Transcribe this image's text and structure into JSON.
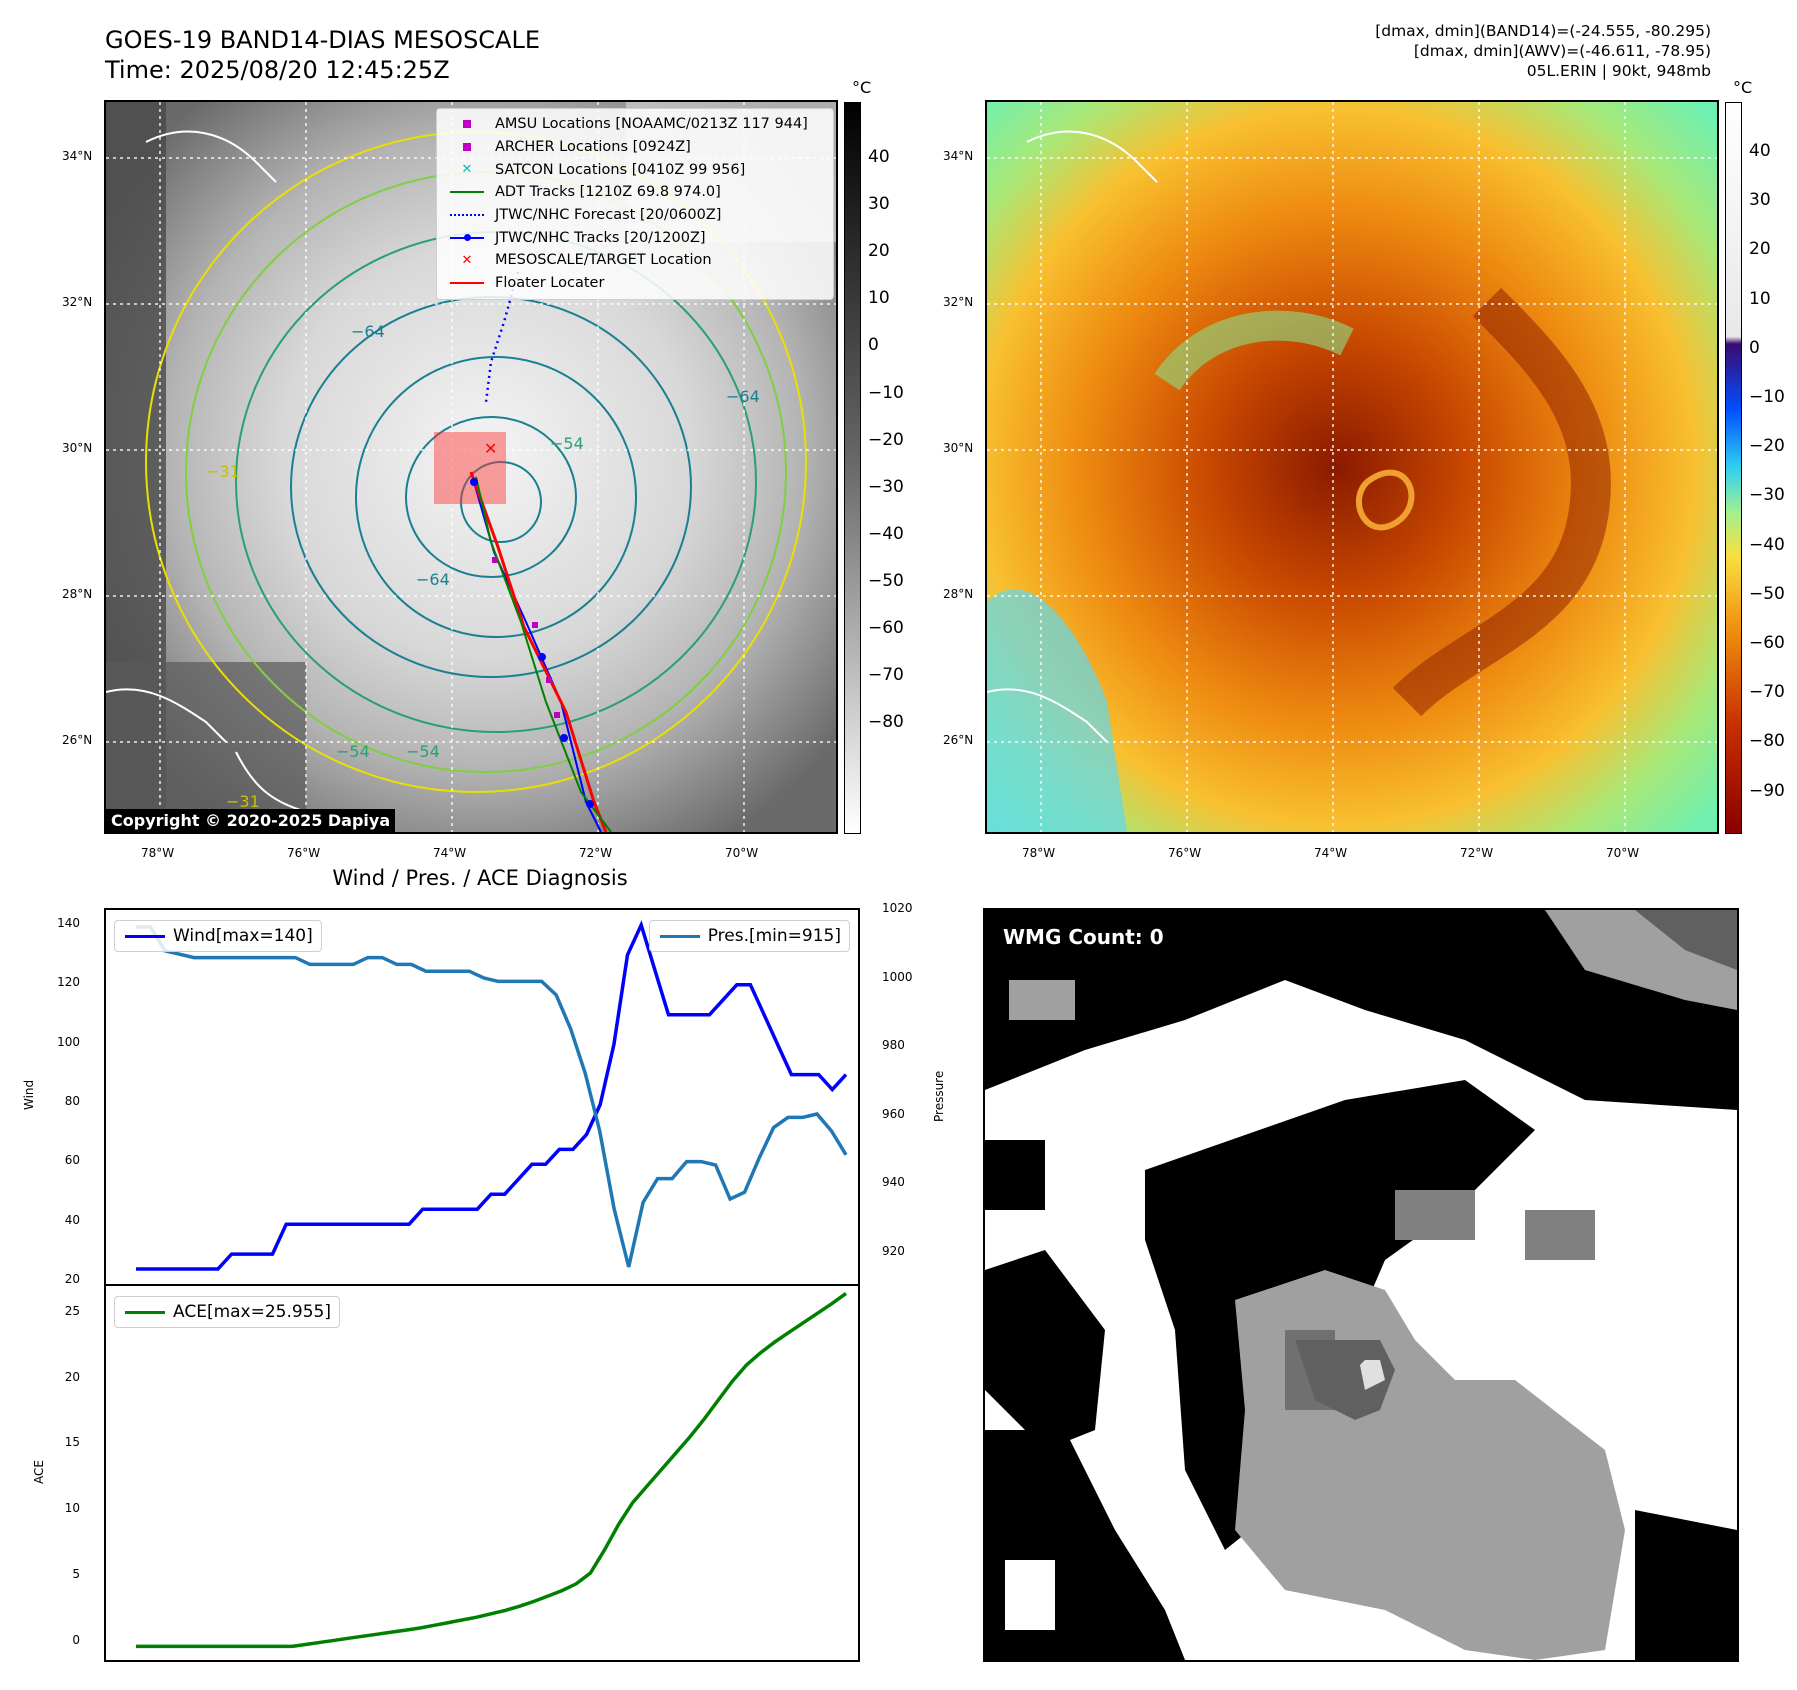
{
  "header": {
    "title_line1": "GOES-19 BAND14-DIAS MESOSCALE",
    "title_line2": "Time: 2025/08/20 12:45:25Z",
    "info_line1": "[dmax, dmin](BAND14)=(-24.555, -80.295)",
    "info_line2": "[dmax, dmin](AWV)=(-46.611, -78.95)",
    "info_line3": "05L.ERIN | 90kt, 948mb"
  },
  "map_axes": {
    "lat_labels": [
      "34°N",
      "32°N",
      "30°N",
      "28°N",
      "26°N"
    ],
    "lon_labels": [
      "78°W",
      "76°W",
      "74°W",
      "72°W",
      "70°W"
    ],
    "lat_values": [
      34,
      32,
      30,
      28,
      26
    ],
    "lon_values": [
      -78,
      -76,
      -74,
      -72,
      -70
    ]
  },
  "map1": {
    "colorbar_unit": "°C",
    "colorbar_ticks": [
      "40",
      "30",
      "20",
      "10",
      "0",
      "−10",
      "−20",
      "−30",
      "−40",
      "−50",
      "−60",
      "−70",
      "−80"
    ],
    "contour_labels": [
      "−64",
      "−31",
      "−64",
      "−54",
      "−64",
      "−54",
      "−31",
      "−54"
    ],
    "copyright": "Copyright © 2020-2025 Dapiya",
    "legend": [
      {
        "label": "AMSU Locations [NOAAMC/0213Z 117 944]",
        "icon": "square-marker",
        "color": "#c000c0"
      },
      {
        "label": "ARCHER Locations [0924Z]",
        "icon": "square-marker",
        "color": "#c000c0"
      },
      {
        "label": "SATCON Locations [0410Z 99 956]",
        "icon": "x-marker",
        "color": "#00c0c0"
      },
      {
        "label": "ADT Tracks [1210Z 69.8 974.0]",
        "icon": "solid-line",
        "color": "#008000"
      },
      {
        "label": "JTWC/NHC Forecast [20/0600Z]",
        "icon": "dotted-line",
        "color": "#0000ff"
      },
      {
        "label": "JTWC/NHC Tracks [20/1200Z]",
        "icon": "line-dot",
        "color": "#0000ff"
      },
      {
        "label": "MESOSCALE/TARGET Location",
        "icon": "x-marker",
        "color": "#ff0000"
      },
      {
        "label": "Floater Locater",
        "icon": "solid-line",
        "color": "#ff0000"
      }
    ]
  },
  "map2": {
    "colorbar_unit": "°C",
    "colorbar_ticks": [
      "40",
      "30",
      "20",
      "10",
      "0",
      "−10",
      "−20",
      "−30",
      "−40",
      "−50",
      "−60",
      "−70",
      "−80",
      "−90"
    ]
  },
  "diag": {
    "title": "Wind / Pres. / ACE Diagnosis",
    "wind_ylabel": "Wind",
    "pres_ylabel": "Pressure",
    "ace_ylabel": "ACE",
    "wind_legend": "Wind[max=140]",
    "pres_legend": "Pres.[min=915]",
    "ace_legend": "ACE[max=25.955]",
    "wind_ticks": [
      "140",
      "120",
      "100",
      "80",
      "60",
      "40",
      "20"
    ],
    "pres_ticks": [
      "1020",
      "1000",
      "980",
      "960",
      "940",
      "920"
    ],
    "ace_ticks": [
      "25",
      "20",
      "15",
      "10",
      "5",
      "0"
    ],
    "colors": {
      "wind": "#0000ff",
      "pres": "#1f77b4",
      "ace": "#008000"
    }
  },
  "wmg": {
    "label": "WMG Count: 0"
  },
  "chart_data": [
    {
      "type": "line",
      "title": "Wind / Pres. / ACE Diagnosis",
      "ylabel": "Wind",
      "ylim": [
        20,
        145
      ],
      "series": [
        {
          "name": "Wind[max=140]",
          "values": [
            25,
            25,
            25,
            25,
            25,
            25,
            25,
            30,
            30,
            30,
            30,
            40,
            40,
            40,
            40,
            40,
            40,
            40,
            40,
            40,
            40,
            45,
            45,
            45,
            45,
            45,
            50,
            50,
            55,
            60,
            60,
            65,
            65,
            70,
            80,
            100,
            130,
            140,
            125,
            110,
            110,
            110,
            110,
            115,
            120,
            120,
            110,
            100,
            90,
            90,
            90,
            85,
            90
          ]
        }
      ]
    },
    {
      "type": "line",
      "ylabel": "Pressure",
      "ylim": [
        910,
        1020
      ],
      "series": [
        {
          "name": "Pres.[min=915]",
          "values": [
            1015,
            1015,
            1008,
            1007,
            1006,
            1006,
            1006,
            1006,
            1006,
            1006,
            1006,
            1006,
            1004,
            1004,
            1004,
            1004,
            1006,
            1006,
            1004,
            1004,
            1002,
            1002,
            1002,
            1002,
            1000,
            999,
            999,
            999,
            999,
            995,
            985,
            972,
            955,
            932,
            915,
            934,
            941,
            941,
            946,
            946,
            945,
            935,
            937,
            947,
            956,
            959,
            959,
            960,
            955,
            948
          ]
        }
      ]
    },
    {
      "type": "line",
      "ylabel": "ACE",
      "ylim": [
        -1,
        26.5
      ],
      "series": [
        {
          "name": "ACE[max=25.955]",
          "values": [
            0,
            0,
            0,
            0,
            0,
            0,
            0,
            0,
            0,
            0,
            0,
            0,
            0.15,
            0.3,
            0.45,
            0.6,
            0.75,
            0.9,
            1.05,
            1.2,
            1.35,
            1.55,
            1.75,
            1.95,
            2.15,
            2.4,
            2.65,
            2.95,
            3.3,
            3.7,
            4.1,
            4.6,
            5.4,
            7.1,
            9.0,
            10.6,
            11.8,
            13.0,
            14.2,
            15.4,
            16.7,
            18.1,
            19.5,
            20.7,
            21.6,
            22.4,
            23.1,
            23.8,
            24.5,
            25.2,
            25.955
          ]
        }
      ]
    }
  ]
}
